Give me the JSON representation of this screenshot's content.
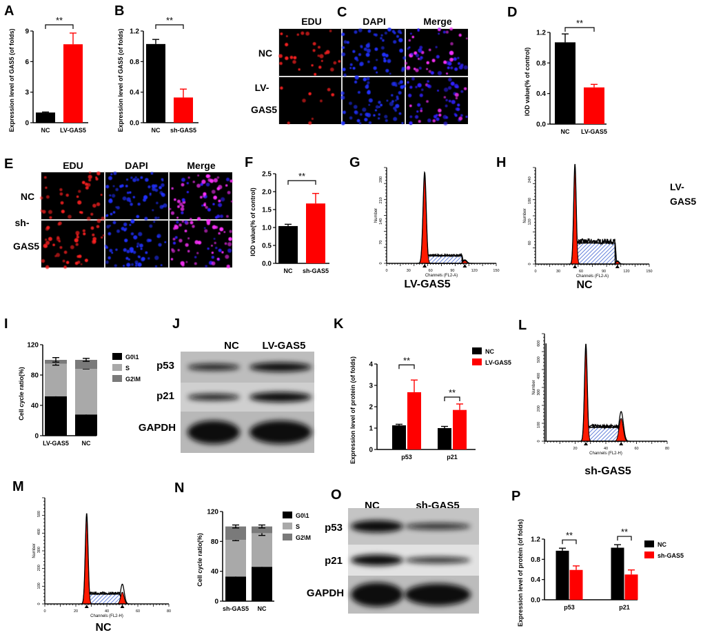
{
  "panel_labels": {
    "A": "A",
    "B": "B",
    "C": "C",
    "D": "D",
    "E": "E",
    "F": "F",
    "G": "G",
    "H": "H",
    "I": "I",
    "J": "J",
    "K": "K",
    "L": "L",
    "M": "M",
    "N": "N",
    "O": "O",
    "P": "P"
  },
  "colors": {
    "control": "#000000",
    "treatment": "#ff0000",
    "s_phase": "#a9a9a9",
    "g2m_phase": "#7a7a7a",
    "hatch": "#3a5fd0",
    "edu": "#ff2020",
    "dapi": "#2030ff"
  },
  "panel_C": {
    "columns": [
      "EDU",
      "DAPI",
      "Merge"
    ],
    "rows": [
      "NC",
      "LV-",
      "GAS5"
    ]
  },
  "panel_E": {
    "columns": [
      "EDU",
      "DAPI",
      "Merge"
    ],
    "rows": [
      "NC",
      "sh-",
      "GAS5"
    ]
  },
  "stray_label": [
    "LV-",
    "GAS5"
  ],
  "panel_J": {
    "lanes": [
      "NC",
      "LV-GAS5"
    ],
    "rows": [
      "p53",
      "p21",
      "GAPDH"
    ]
  },
  "panel_O": {
    "lanes": [
      "NC",
      "sh-GAS5"
    ],
    "rows": [
      "p53",
      "p21",
      "GAPDH"
    ]
  },
  "chart_data": [
    {
      "id": "A",
      "type": "bar",
      "ylabel": "Expression level of GAS5 (of folds)",
      "categories": [
        "NC",
        "LV-GAS5"
      ],
      "values": [
        1.0,
        7.7
      ],
      "errors": [
        0.05,
        1.1
      ],
      "colors": [
        "#000000",
        "#ff0000"
      ],
      "ylim": [
        0,
        9
      ],
      "yticks": [
        "0",
        "3",
        "6",
        "9"
      ],
      "significance": "**"
    },
    {
      "id": "B",
      "type": "bar",
      "ylabel": "Expression level of GAS5 (of folds)",
      "categories": [
        "NC",
        "sh-GAS5"
      ],
      "values": [
        1.03,
        0.33
      ],
      "errors": [
        0.06,
        0.11
      ],
      "colors": [
        "#000000",
        "#ff0000"
      ],
      "ylim": [
        0,
        1.2
      ],
      "yticks": [
        "0.0",
        "0.4",
        "0.8",
        "1.2"
      ],
      "significance": "**"
    },
    {
      "id": "D",
      "type": "bar",
      "ylabel": "IOD value(% of control)",
      "categories": [
        "NC",
        "LV-GAS5"
      ],
      "values": [
        1.07,
        0.48
      ],
      "errors": [
        0.11,
        0.04
      ],
      "colors": [
        "#000000",
        "#ff0000"
      ],
      "ylim": [
        0,
        1.2
      ],
      "yticks": [
        "0.0",
        "0.4",
        "0.8",
        "1.2"
      ],
      "significance": "**"
    },
    {
      "id": "F",
      "type": "bar",
      "ylabel": "IOD value(% of control)",
      "categories": [
        "NC",
        "sh-GAS5"
      ],
      "values": [
        1.04,
        1.67
      ],
      "errors": [
        0.05,
        0.28
      ],
      "colors": [
        "#000000",
        "#ff0000"
      ],
      "ylim": [
        0,
        2.5
      ],
      "yticks": [
        "0.0",
        "0.5",
        "1.0",
        "1.5",
        "2.0",
        "2.5"
      ],
      "significance": "**"
    },
    {
      "id": "G",
      "type": "histogram",
      "caption": "LV-GAS5",
      "xlabel": "Channels (FL2-A)",
      "ylabel": "Number",
      "xticks": [
        "0",
        "30",
        "60",
        "90",
        "120",
        "150"
      ],
      "yticks": [
        "0",
        "70",
        "140",
        "210",
        "280"
      ],
      "xlim": [
        0,
        150
      ]
    },
    {
      "id": "H",
      "type": "histogram",
      "caption": "NC",
      "xlabel": "Channels (FL2-A)",
      "ylabel": "Number",
      "xticks": [
        "0",
        "30",
        "60",
        "90",
        "120",
        "150"
      ],
      "yticks": [
        "0",
        "60",
        "120",
        "180",
        "240"
      ],
      "xlim": [
        0,
        150
      ]
    },
    {
      "id": "I",
      "type": "stacked-bar",
      "ylabel": "Cell cycle ratio(%)",
      "categories": [
        "LV-GAS5",
        "NC"
      ],
      "series": [
        {
          "name": "G0\\1",
          "values": [
            52,
            28
          ],
          "errors": [
            2,
            2
          ],
          "color": "#000000"
        },
        {
          "name": "S",
          "values": [
            43,
            60
          ],
          "errors": [
            2,
            0
          ],
          "color": "#a9a9a9"
        },
        {
          "name": "G2\\M",
          "values": [
            5,
            12
          ],
          "errors": [
            3,
            2
          ],
          "color": "#7a7a7a"
        }
      ],
      "ylim": [
        0,
        120
      ],
      "yticks": [
        "0",
        "40",
        "80",
        "120"
      ],
      "legend": "right"
    },
    {
      "id": "K",
      "type": "grouped-bar",
      "ylabel": "Expression level of protein (of folds)",
      "categories": [
        "p53",
        "p21"
      ],
      "series": [
        {
          "name": "NC",
          "values": [
            1.13,
            1.0
          ],
          "errors": [
            0.05,
            0.08
          ],
          "color": "#000000"
        },
        {
          "name": "LV-GAS5",
          "values": [
            2.68,
            1.85
          ],
          "errors": [
            0.57,
            0.28
          ],
          "color": "#ff0000"
        }
      ],
      "ylim": [
        0,
        4
      ],
      "yticks": [
        "0",
        "1",
        "2",
        "3",
        "4"
      ],
      "significance": [
        "**",
        "**"
      ],
      "legend": "top-right"
    },
    {
      "id": "L",
      "type": "histogram",
      "caption": "sh-GAS5",
      "xlabel": "Channels (FL2-H)",
      "ylabel": "Number",
      "xticks": [
        "20",
        "40",
        "60",
        "80"
      ],
      "yticks": [
        "0",
        "100",
        "200",
        "300",
        "400",
        "500",
        "600"
      ],
      "xlim": [
        0,
        80
      ]
    },
    {
      "id": "M",
      "type": "histogram",
      "caption": "NC",
      "xlabel": "Channels (FL2-H)",
      "ylabel": "Number",
      "xticks": [
        "0",
        "20",
        "40",
        "60",
        "80"
      ],
      "yticks": [
        "0",
        "100",
        "200",
        "300",
        "400",
        "500"
      ],
      "xlim": [
        0,
        80
      ]
    },
    {
      "id": "N",
      "type": "stacked-bar",
      "ylabel": "Cell cycle ratio(%)",
      "categories": [
        "sh-GAS5",
        "NC"
      ],
      "series": [
        {
          "name": "G0\\1",
          "values": [
            33,
            46
          ],
          "errors": [
            2,
            2
          ],
          "color": "#000000"
        },
        {
          "name": "S",
          "values": [
            49,
            45
          ],
          "errors": [
            1,
            3
          ],
          "color": "#a9a9a9"
        },
        {
          "name": "G2\\M",
          "values": [
            18,
            9
          ],
          "errors": [
            2,
            2
          ],
          "color": "#7a7a7a"
        }
      ],
      "ylim": [
        0,
        120
      ],
      "yticks": [
        "0",
        "40",
        "80",
        "120"
      ],
      "legend": "right"
    },
    {
      "id": "P",
      "type": "grouped-bar",
      "ylabel": "Expression level of protein (of folds)",
      "categories": [
        "p53",
        "p21"
      ],
      "series": [
        {
          "name": "NC",
          "values": [
            0.97,
            1.03
          ],
          "errors": [
            0.05,
            0.06
          ],
          "color": "#000000"
        },
        {
          "name": "sh-GAS5",
          "values": [
            0.59,
            0.5
          ],
          "errors": [
            0.08,
            0.09
          ],
          "color": "#ff0000"
        }
      ],
      "ylim": [
        0,
        1.2
      ],
      "yticks": [
        "0.0",
        "0.4",
        "0.8",
        "1.2"
      ],
      "significance": [
        "**",
        "**"
      ],
      "legend": "top-right"
    }
  ]
}
